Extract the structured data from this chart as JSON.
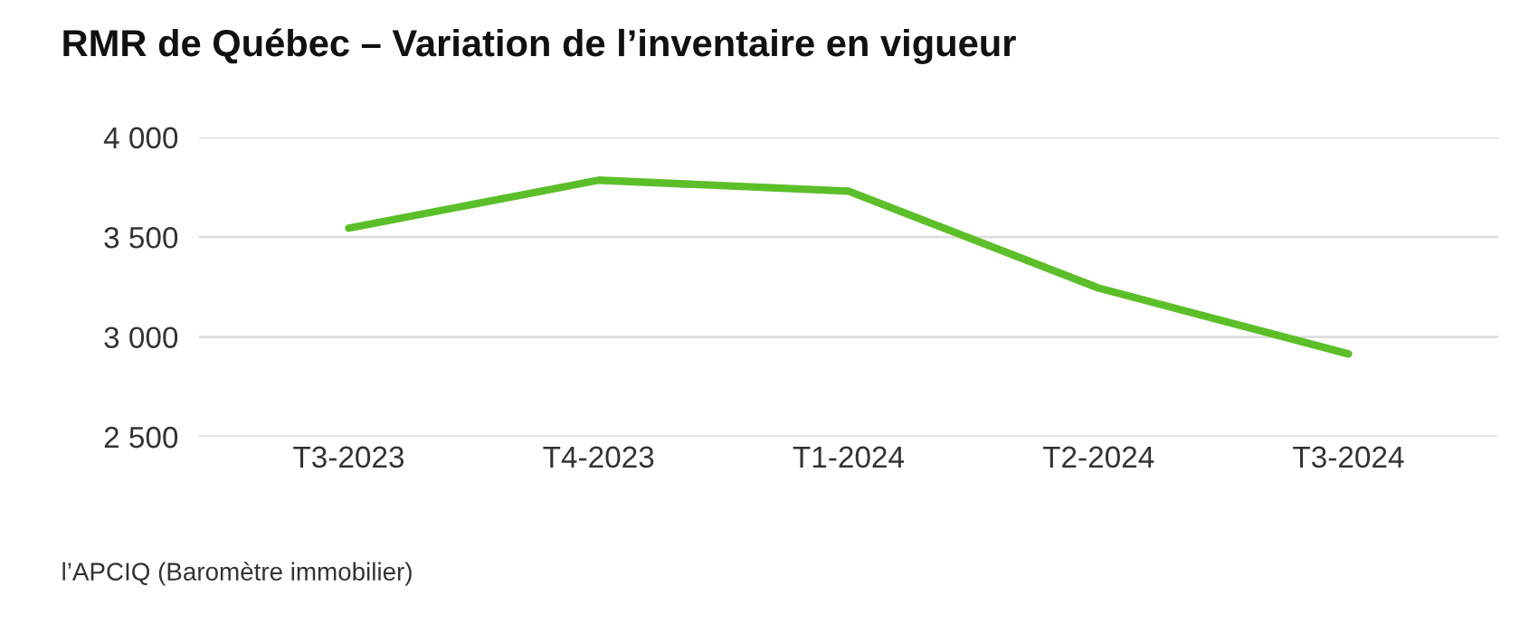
{
  "chart_data": {
    "type": "line",
    "title": "RMR de Québec – Variation de l’inventaire en vigueur",
    "categories": [
      "T3-2023",
      "T4-2023",
      "T1-2024",
      "T2-2024",
      "T3-2024"
    ],
    "series": [
      {
        "color": "#5cbf2a",
        "values": [
          3545,
          3785,
          3730,
          3245,
          2915
        ]
      }
    ],
    "ylim": [
      2500,
      4000
    ],
    "yticks": [
      {
        "value": 2500,
        "label": "2 500"
      },
      {
        "value": 3000,
        "label": "3 000"
      },
      {
        "value": 3500,
        "label": "3 500"
      },
      {
        "value": 4000,
        "label": "4 000"
      }
    ],
    "grid": "y",
    "marker": "none",
    "line_style": "solid",
    "annotations": [
      "l’APCIQ (Baromètre immobilier)"
    ]
  }
}
